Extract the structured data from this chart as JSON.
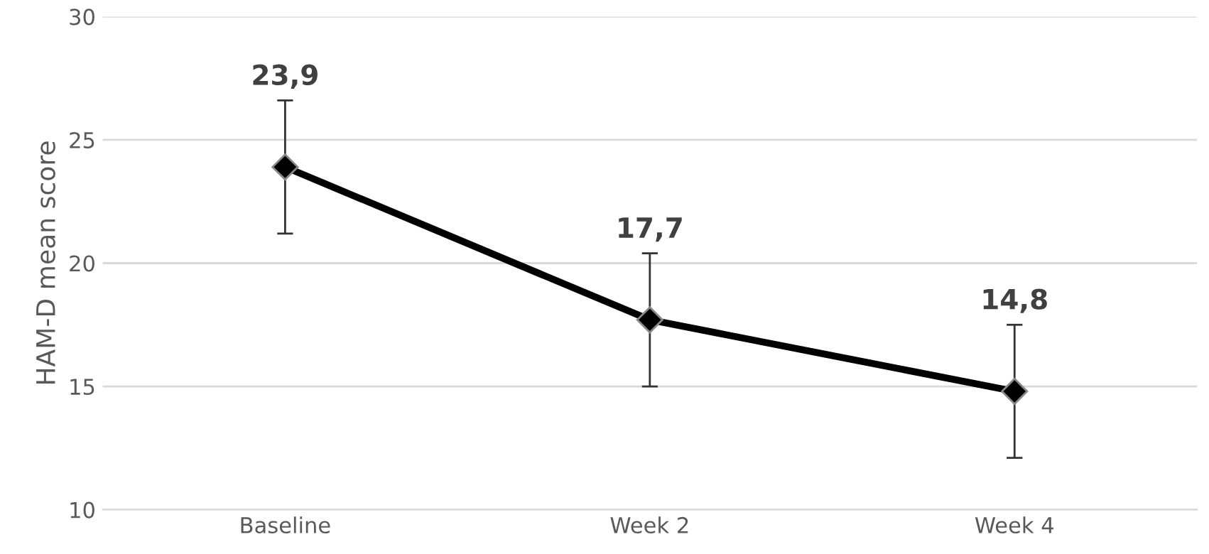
{
  "chart_data": {
    "type": "line",
    "ylabel": "HAM-D mean score",
    "categories": [
      "Baseline",
      "Week 2",
      "Week 4"
    ],
    "series": [
      {
        "color": "#000000",
        "values": [
          23.9,
          17.7,
          14.8
        ],
        "errors": [
          2.7,
          2.7,
          2.7
        ],
        "value_labels": [
          "23,9",
          "17,7",
          "14,8"
        ]
      }
    ],
    "ylim": [
      10,
      30
    ],
    "yticks": [
      10,
      15,
      20,
      25,
      30
    ],
    "grid": "y",
    "marker": "diamond",
    "line_style": "solid",
    "legend": false
  }
}
